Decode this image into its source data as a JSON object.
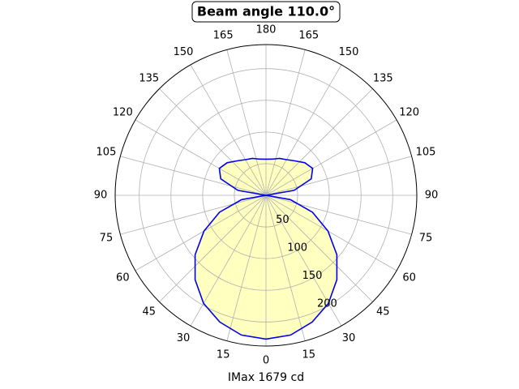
{
  "chart_data": {
    "type": "polar",
    "title": "Beam angle 110.0°",
    "xlabel": "IMax 1679 cd",
    "theta": [
      0,
      10,
      20,
      30,
      40,
      50,
      60,
      70,
      80,
      90,
      100,
      110,
      120,
      130,
      140,
      150,
      160,
      170,
      180,
      190,
      200,
      210,
      220,
      230,
      240,
      250,
      260,
      270,
      280,
      290,
      300,
      310,
      320,
      330,
      340,
      350,
      360
    ],
    "series": [
      {
        "name": "intensity",
        "color": "#0000ee",
        "fill": "#ffffc0",
        "values": [
          227,
          224,
          213,
          197,
          174,
          146,
          113,
          78,
          39,
          0,
          45,
          76,
          85,
          80,
          71,
          65,
          62,
          58,
          57,
          58,
          62,
          65,
          71,
          80,
          85,
          76,
          45,
          0,
          39,
          78,
          113,
          146,
          174,
          197,
          213,
          224,
          227
        ]
      }
    ],
    "ylim": [
      0,
      238
    ],
    "yticks": [
      50,
      100,
      150,
      200
    ],
    "xticks": [
      0,
      15,
      30,
      45,
      60,
      75,
      90,
      105,
      120,
      135,
      150,
      165,
      180,
      {
        "value": 195,
        "label": "165"
      },
      {
        "value": 210,
        "label": "150"
      },
      {
        "value": 225,
        "label": "135"
      },
      {
        "value": 240,
        "label": "120"
      },
      {
        "value": 255,
        "label": "105"
      },
      {
        "value": 270,
        "label": "90"
      },
      {
        "value": 285,
        "label": "75"
      },
      {
        "value": 300,
        "label": "60"
      },
      {
        "value": 315,
        "label": "45"
      },
      {
        "value": 330,
        "label": "30"
      },
      {
        "value": 345,
        "label": "15"
      }
    ],
    "grid": true
  }
}
